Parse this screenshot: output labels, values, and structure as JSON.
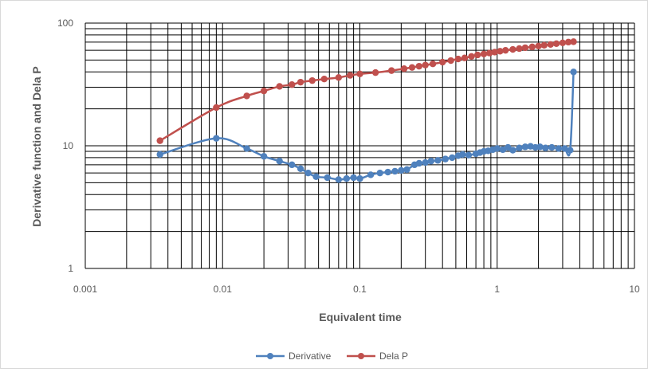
{
  "chart_data": {
    "type": "scatter",
    "title": "",
    "xlabel": "Equivalent time",
    "ylabel": "Derivative function and Dela P",
    "x_scale": "log",
    "y_scale": "log",
    "xlim": [
      0.001,
      10
    ],
    "ylim": [
      1,
      100
    ],
    "grid": true,
    "legend_position": "bottom",
    "x_tick_labels": [
      "0.001",
      "0.01",
      "0.1",
      "1",
      "10"
    ],
    "y_tick_labels": [
      "1",
      "10",
      "100"
    ],
    "series": [
      {
        "name": "Derivative",
        "color": "#4f81bd",
        "x": [
          0.0035,
          0.009,
          0.015,
          0.02,
          0.026,
          0.032,
          0.037,
          0.042,
          0.048,
          0.058,
          0.07,
          0.08,
          0.09,
          0.1,
          0.12,
          0.14,
          0.16,
          0.18,
          0.2,
          0.22,
          0.25,
          0.27,
          0.3,
          0.33,
          0.37,
          0.42,
          0.47,
          0.52,
          0.56,
          0.62,
          0.7,
          0.75,
          0.8,
          0.86,
          0.93,
          1.0,
          1.1,
          1.2,
          1.3,
          1.45,
          1.6,
          1.75,
          1.9,
          2.05,
          2.25,
          2.5,
          2.8,
          3.1,
          3.4,
          3.6
        ],
        "y": [
          8.5,
          11.5,
          9.5,
          8.2,
          7.5,
          7.0,
          6.5,
          6.0,
          5.6,
          5.5,
          5.3,
          5.4,
          5.5,
          5.4,
          5.8,
          6.0,
          6.1,
          6.2,
          6.3,
          6.4,
          7.0,
          7.2,
          7.3,
          7.5,
          7.6,
          7.8,
          8.0,
          8.3,
          8.5,
          8.4,
          8.6,
          8.8,
          9.0,
          9.1,
          9.3,
          9.5,
          9.3,
          9.7,
          9.2,
          9.6,
          9.8,
          9.9,
          9.7,
          9.8,
          9.6,
          9.7,
          9.5,
          9.5,
          9.2,
          40
        ]
      },
      {
        "name": "Dela P",
        "color": "#c0504d",
        "x": [
          0.0035,
          0.009,
          0.015,
          0.02,
          0.026,
          0.032,
          0.037,
          0.045,
          0.055,
          0.07,
          0.085,
          0.1,
          0.13,
          0.17,
          0.21,
          0.24,
          0.27,
          0.3,
          0.34,
          0.4,
          0.46,
          0.52,
          0.58,
          0.65,
          0.72,
          0.8,
          0.88,
          0.96,
          1.05,
          1.15,
          1.3,
          1.45,
          1.6,
          1.8,
          2.0,
          2.2,
          2.45,
          2.7,
          3.0,
          3.3,
          3.6
        ],
        "y": [
          11,
          20.5,
          25.5,
          28,
          30.5,
          31.5,
          33,
          34,
          35,
          36,
          37.5,
          38.5,
          39.5,
          41,
          42.5,
          43.5,
          44.5,
          45.5,
          46.5,
          48,
          49.5,
          51,
          52,
          53.5,
          55,
          56,
          57,
          58,
          59,
          60,
          61,
          62,
          63,
          64,
          65,
          66,
          67,
          68,
          69,
          70,
          70.5
        ]
      }
    ]
  }
}
